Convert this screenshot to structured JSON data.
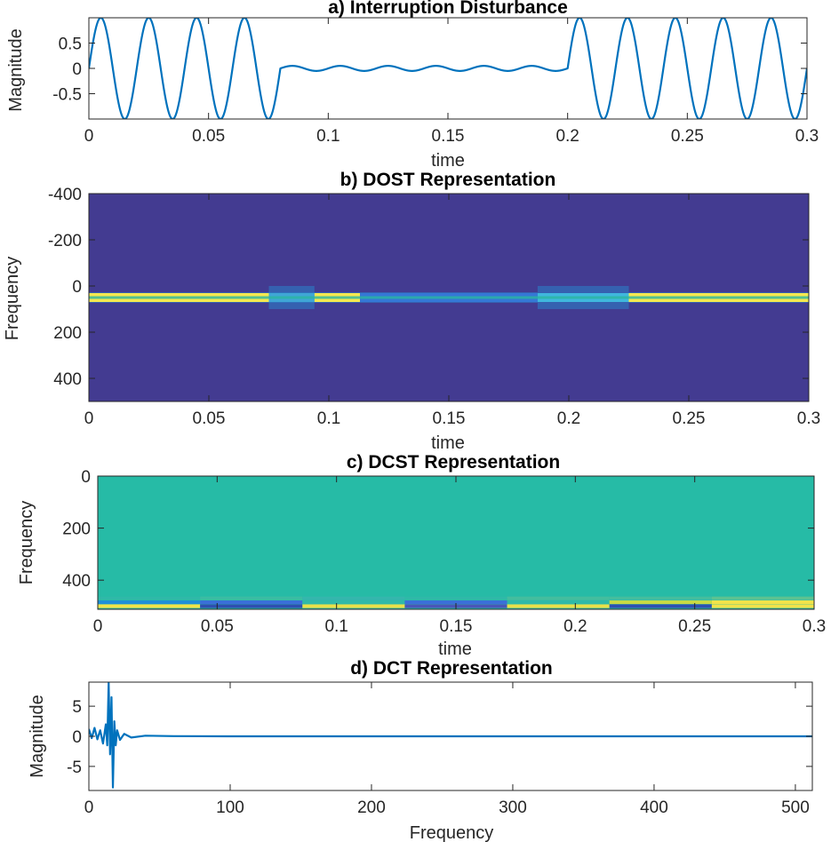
{
  "chart_data": [
    {
      "type": "line",
      "title": "a) Interruption Disturbance",
      "xlabel": "time",
      "ylabel": "Magnitude",
      "xlim": [
        0,
        0.3
      ],
      "ylim": [
        -1,
        1
      ],
      "xticks": [
        "0",
        "0.05",
        "0.1",
        "0.15",
        "0.2",
        "0.25",
        "0.3"
      ],
      "yticks": [
        "0.5",
        "0",
        "-0.5"
      ],
      "grid": false,
      "series": [
        {
          "signal": "sine",
          "frequency_hz": 50,
          "segments": [
            {
              "t_start": 0,
              "t_end": 0.08,
              "amplitude": 1
            },
            {
              "t_start": 0.08,
              "t_end": 0.2,
              "amplitude": 0.05
            },
            {
              "t_start": 0.2,
              "t_end": 0.3,
              "amplitude": 1
            }
          ]
        }
      ]
    },
    {
      "type": "heatmap",
      "title": "b) DOST Representation",
      "xlabel": "time",
      "ylabel": "Frequency",
      "xlim": [
        0,
        0.3
      ],
      "ylim": [
        -400,
        500
      ],
      "y_reversed": true,
      "xticks": [
        "0",
        "0.05",
        "0.1",
        "0.15",
        "0.2",
        "0.25",
        "0.3"
      ],
      "yticks": [
        "-400",
        "-200",
        "0",
        "200",
        "400"
      ],
      "background_color": "#433b91",
      "bands": [
        {
          "x_start": 0,
          "x_end": 0.113,
          "freq_center": 50,
          "color": "#f5e850"
        },
        {
          "x_start": 0.075,
          "x_end": 0.094,
          "freq_center": 50,
          "color": "#3fa6d6"
        },
        {
          "x_start": 0.113,
          "x_end": 0.187,
          "freq_center": 50,
          "color": "#3578d6"
        },
        {
          "x_start": 0.187,
          "x_end": 0.225,
          "freq_center": 50,
          "color": "#3fb7dd"
        },
        {
          "x_start": 0.225,
          "x_end": 0.3,
          "freq_center": 50,
          "color": "#f5e850"
        }
      ]
    },
    {
      "type": "heatmap",
      "title": "c) DCST Representation",
      "xlabel": "time",
      "ylabel": "Frequency",
      "xlim": [
        0,
        0.3
      ],
      "ylim": [
        0,
        512
      ],
      "y_reversed": true,
      "xticks": [
        "0",
        "0.05",
        "0.1",
        "0.15",
        "0.2",
        "0.25",
        "0.3"
      ],
      "yticks": [
        "0",
        "200",
        "400"
      ],
      "background_color": "#26bba6",
      "low_freq_rows": [
        {
          "freq": 470,
          "colors": [
            "#2fb9a8",
            "#3bbca3",
            "#35b6ad",
            "#2fb9a8",
            "#44bd9e",
            "#44bd9e",
            "#5bc291"
          ]
        },
        {
          "freq": 485,
          "colors": [
            "#1f8fd8",
            "#3a6fd8",
            "#2fb9a8",
            "#3a6fd8",
            "#2fb9a8",
            "#c8d944",
            "#f2e34a"
          ]
        },
        {
          "freq": 500,
          "colors": [
            "#f2e34a",
            "#2f4fb0",
            "#e9e04a",
            "#4a56b8",
            "#e9e04a",
            "#2f4fb0",
            "#f2e34a"
          ]
        }
      ]
    },
    {
      "type": "line",
      "title": "d) DCT Representation",
      "xlabel": "Frequency",
      "ylabel": "Magnitude",
      "xlim": [
        0,
        512
      ],
      "ylim": [
        -9,
        9
      ],
      "xticks": [
        "0",
        "100",
        "200",
        "300",
        "400",
        "500"
      ],
      "yticks": [
        "5",
        "0",
        "-5"
      ],
      "grid": false,
      "series": [
        {
          "x": [
            0,
            2,
            4,
            6,
            8,
            10,
            12,
            13,
            14,
            15,
            16,
            17,
            18,
            19,
            20,
            22,
            25,
            30,
            40,
            60,
            100,
            512
          ],
          "values": [
            1.2,
            -0.3,
            1.4,
            -0.5,
            1.0,
            -1.2,
            2.0,
            -1.5,
            9.0,
            -3.0,
            6.5,
            -8.5,
            2.5,
            -1.5,
            1.0,
            -0.6,
            0.4,
            -0.2,
            0.1,
            0.03,
            0,
            0
          ]
        }
      ]
    }
  ]
}
